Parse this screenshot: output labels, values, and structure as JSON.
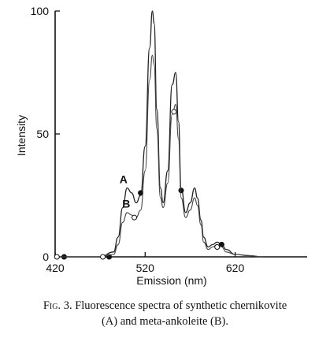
{
  "chart_data": {
    "type": "line",
    "title": "",
    "xlabel": "Emission (nm)",
    "ylabel": "Intensity",
    "xlim": [
      420,
      700
    ],
    "ylim": [
      0,
      100
    ],
    "x_ticks": [
      420,
      520,
      620
    ],
    "y_ticks": [
      0,
      50,
      100
    ],
    "x_tick_labels": [
      "420",
      "520",
      "620"
    ],
    "y_tick_labels": [
      "0",
      "50",
      "100"
    ],
    "grid": false,
    "legend": "none",
    "series": [
      {
        "name": "A",
        "marker": "filled-circle",
        "x": [
          420,
          470,
          485,
          490,
          495,
          500,
          505,
          510,
          515,
          520,
          525,
          528,
          530,
          533,
          537,
          540,
          545,
          550,
          554,
          557,
          560,
          565,
          570,
          575,
          578,
          582,
          585,
          590,
          595,
          600,
          605,
          610,
          620,
          635,
          650
        ],
        "y": [
          0,
          0,
          2,
          8,
          20,
          28,
          26,
          22,
          25,
          45,
          85,
          100,
          95,
          60,
          28,
          22,
          35,
          70,
          75,
          55,
          28,
          18,
          22,
          28,
          24,
          15,
          8,
          4,
          5,
          6,
          5,
          3,
          1,
          0.5,
          0
        ],
        "markers_x": [
          430,
          480,
          515,
          560,
          605
        ],
        "markers_y": [
          0,
          0,
          26,
          27,
          5
        ]
      },
      {
        "name": "B",
        "marker": "open-circle",
        "x": [
          420,
          470,
          485,
          490,
          495,
          500,
          505,
          510,
          515,
          520,
          525,
          528,
          530,
          533,
          537,
          540,
          545,
          550,
          554,
          557,
          560,
          565,
          570,
          575,
          578,
          582,
          585,
          590,
          595,
          600,
          605,
          610,
          620,
          635,
          650
        ],
        "y": [
          0,
          0,
          1,
          5,
          14,
          18,
          17,
          16,
          19,
          35,
          72,
          82,
          78,
          52,
          24,
          20,
          30,
          58,
          62,
          48,
          24,
          16,
          19,
          24,
          21,
          13,
          6,
          3,
          4,
          5,
          4,
          2,
          1,
          0.5,
          0
        ],
        "markers_x": [
          422,
          473,
          508,
          552,
          600
        ],
        "markers_y": [
          0,
          0,
          16,
          59,
          4
        ]
      }
    ],
    "annotations": [
      {
        "text": "A",
        "x": 496,
        "y": 30
      },
      {
        "text": "B",
        "x": 499,
        "y": 20
      }
    ]
  },
  "caption": {
    "fig_label": "Fig. 3.",
    "line1": " Fluorescence spectra of synthetic chernikovite",
    "line2": "(A) and meta-ankoleite (B)."
  }
}
